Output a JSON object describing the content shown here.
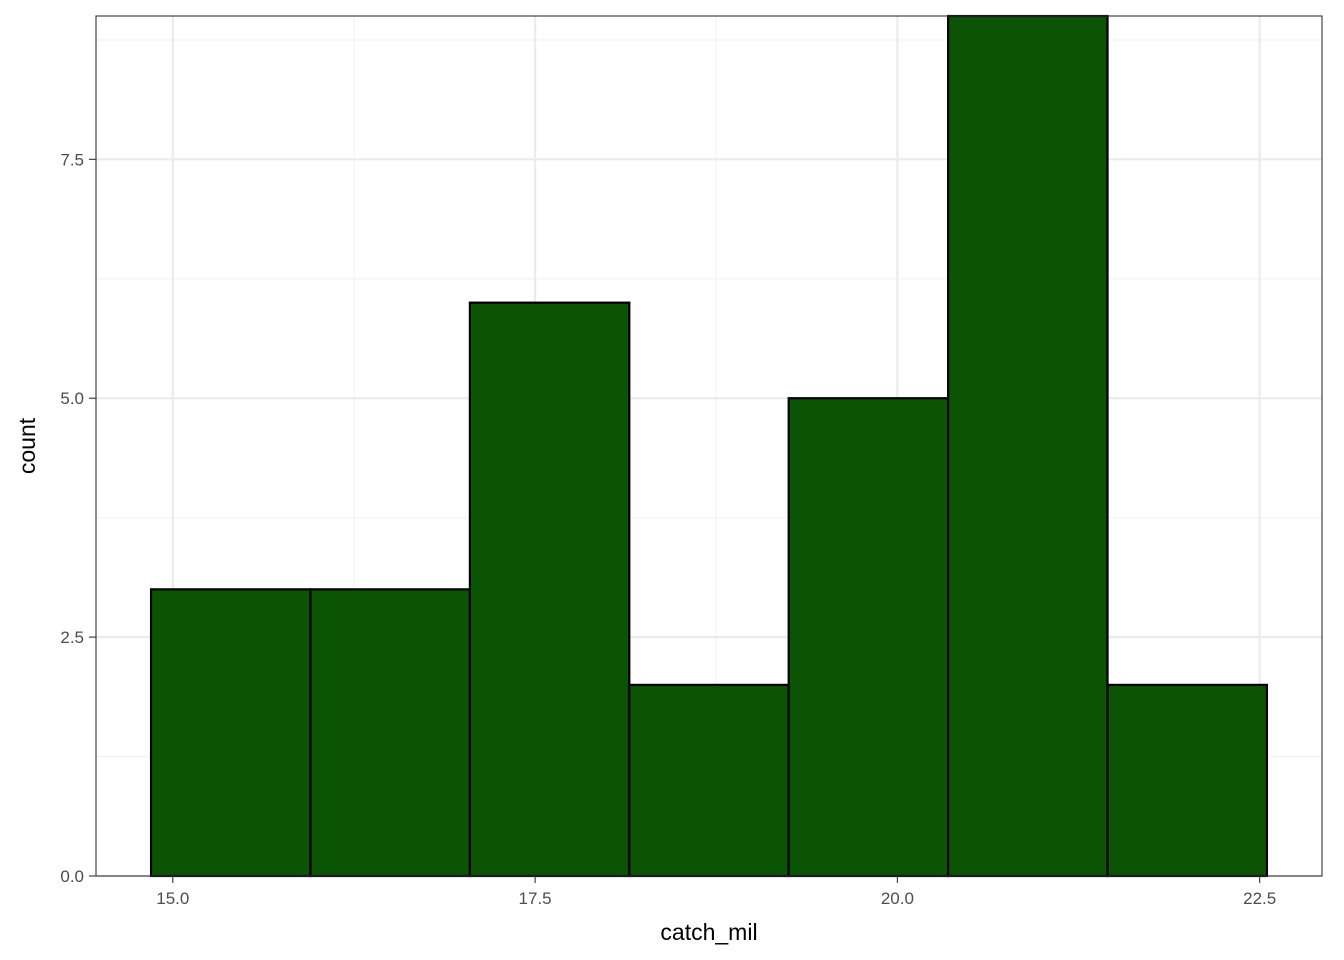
{
  "chart_data": {
    "type": "bar",
    "subtype": "histogram",
    "xlabel": "catch_mil",
    "ylabel": "count",
    "bins": [
      {
        "x_start": 14.85,
        "x_end": 15.95,
        "count": 3
      },
      {
        "x_start": 15.95,
        "x_end": 17.05,
        "count": 3
      },
      {
        "x_start": 17.05,
        "x_end": 18.15,
        "count": 6
      },
      {
        "x_start": 18.15,
        "x_end": 19.25,
        "count": 2
      },
      {
        "x_start": 19.25,
        "x_end": 20.35,
        "count": 5
      },
      {
        "x_start": 20.35,
        "x_end": 21.45,
        "count": 9
      },
      {
        "x_start": 21.45,
        "x_end": 22.55,
        "count": 2
      }
    ],
    "x_ticks": [
      {
        "value": 15.0,
        "label": "15.0"
      },
      {
        "value": 17.5,
        "label": "17.5"
      },
      {
        "value": 20.0,
        "label": "20.0"
      },
      {
        "value": 22.5,
        "label": "22.5"
      }
    ],
    "y_ticks": [
      {
        "value": 0.0,
        "label": "0.0"
      },
      {
        "value": 2.5,
        "label": "2.5"
      },
      {
        "value": 5.0,
        "label": "5.0"
      },
      {
        "value": 7.5,
        "label": "7.5"
      }
    ],
    "xlim": [
      14.47,
      22.93
    ],
    "ylim": [
      0,
      9
    ],
    "grid": true,
    "legend": "none",
    "colors": {
      "bar_fill": "#0b5305",
      "bar_outline": "#000000",
      "grid_major": "#ebebeb",
      "grid_minor": "#f2f2f2",
      "panel_border": "#333333",
      "background": "#ffffff"
    }
  }
}
